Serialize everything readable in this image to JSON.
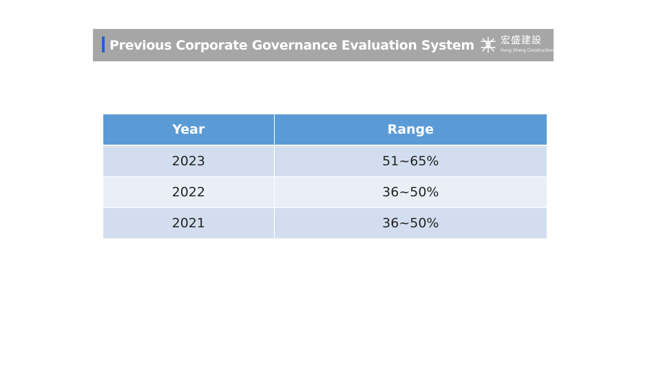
{
  "header": {
    "title": "Previous Corporate Governance Evaluation System",
    "logo": {
      "name_cn": "宏盛建設",
      "name_en": "Hung Sheng Construction",
      "icon": "company-logo-icon"
    }
  },
  "table": {
    "columns": [
      "Year",
      "Range"
    ],
    "rows": [
      {
        "year": "2023",
        "range": "51~65%"
      },
      {
        "year": "2022",
        "range": "36~50%"
      },
      {
        "year": "2021",
        "range": "36~50%"
      }
    ]
  },
  "colors": {
    "header_bar": "#a6a6a6",
    "accent": "#1f5fd6",
    "table_header": "#5b9bd5",
    "row_odd": "#d2deef",
    "row_even": "#eaeff7"
  }
}
